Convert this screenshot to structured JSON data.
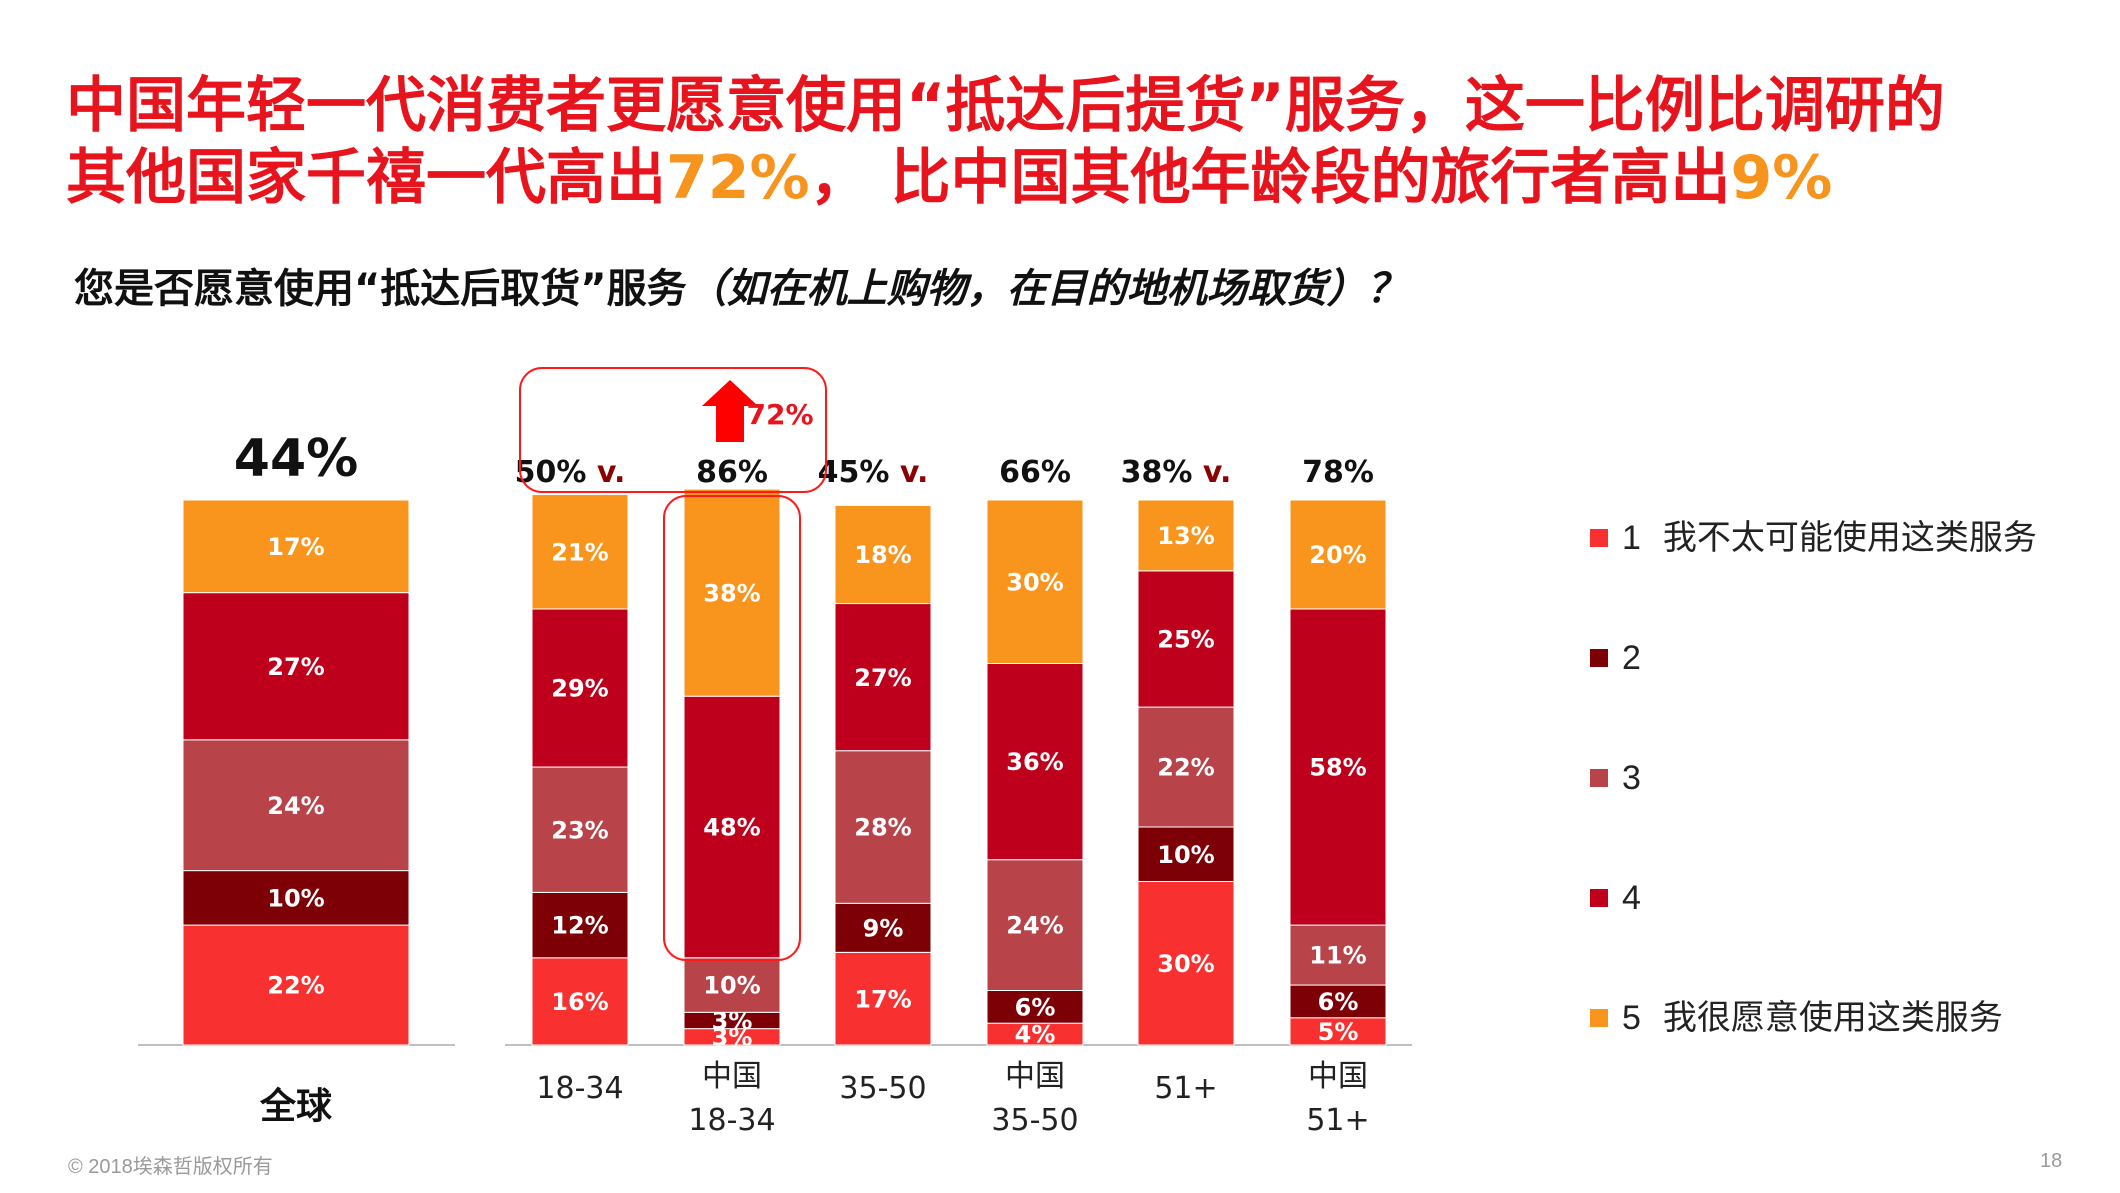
{
  "title": {
    "line1": "中国年轻一代消费者更愿意使用“抵达后提货”服务，这一比例比调研的",
    "line2_a": "其他国家千禧一代高出",
    "line2_hl1": "72%",
    "line2_b": "，  比中国其他年龄段的旅行者高出",
    "line2_hl2": "9%"
  },
  "subtitle": {
    "main": "您是否愿意使用“抵达后取货”服务",
    "paren": "（如在机上购物，在目的地机场取货）？"
  },
  "callout": {
    "value": "72%"
  },
  "footer": {
    "copyright": "© 2018埃森哲版权所有",
    "page": "18"
  },
  "colors": {
    "s1": "#f8302f",
    "s2": "#7e0007",
    "s3": "#b84349",
    "s4": "#be001c",
    "s5": "#f9951c",
    "accent_red": "#e8141d",
    "highlight_orange": "#f7941d",
    "callout_dark_red": "#8b0000"
  },
  "chart_data": {
    "type": "bar",
    "stacked": true,
    "series_order_bottom_to_top": [
      "1",
      "2",
      "3",
      "4",
      "5"
    ],
    "legend": [
      {
        "key": "1",
        "label": "我不太可能使用这类服务",
        "color": "#f8302f"
      },
      {
        "key": "2",
        "label": "",
        "color": "#7e0007"
      },
      {
        "key": "3",
        "label": "",
        "color": "#b84349"
      },
      {
        "key": "4",
        "label": "",
        "color": "#be001c"
      },
      {
        "key": "5",
        "label": "我很愿意使用这类服务",
        "color": "#f9951c"
      }
    ],
    "groups": [
      {
        "id": "global",
        "bars": [
          {
            "label": "全球",
            "top": "44%",
            "values": [
              22,
              10,
              24,
              27,
              17
            ]
          }
        ]
      },
      {
        "id": "age",
        "bars": [
          {
            "label": "18-34",
            "top": "50%",
            "vs": "v.",
            "values": [
              16,
              12,
              23,
              29,
              21
            ]
          },
          {
            "label": "中国\n18-34",
            "top": "86%",
            "values": [
              3,
              3,
              10,
              48,
              38
            ],
            "segment_labels": [
              "3%",
              "3%",
              "10%",
              "48%",
              "38%"
            ]
          },
          {
            "label": "35-50",
            "top": "45%",
            "vs": "v.",
            "values": [
              17,
              9,
              28,
              27,
              18
            ]
          },
          {
            "label": "中国\n35-50",
            "top": "66%",
            "values": [
              4,
              6,
              24,
              36,
              30
            ]
          },
          {
            "label": "51+",
            "top": "38%",
            "vs": "v.",
            "values": [
              30,
              10,
              22,
              25,
              13
            ]
          },
          {
            "label": "中国\n51+",
            "top": "78%",
            "values": [
              5,
              6,
              11,
              58,
              20
            ]
          }
        ]
      }
    ]
  }
}
